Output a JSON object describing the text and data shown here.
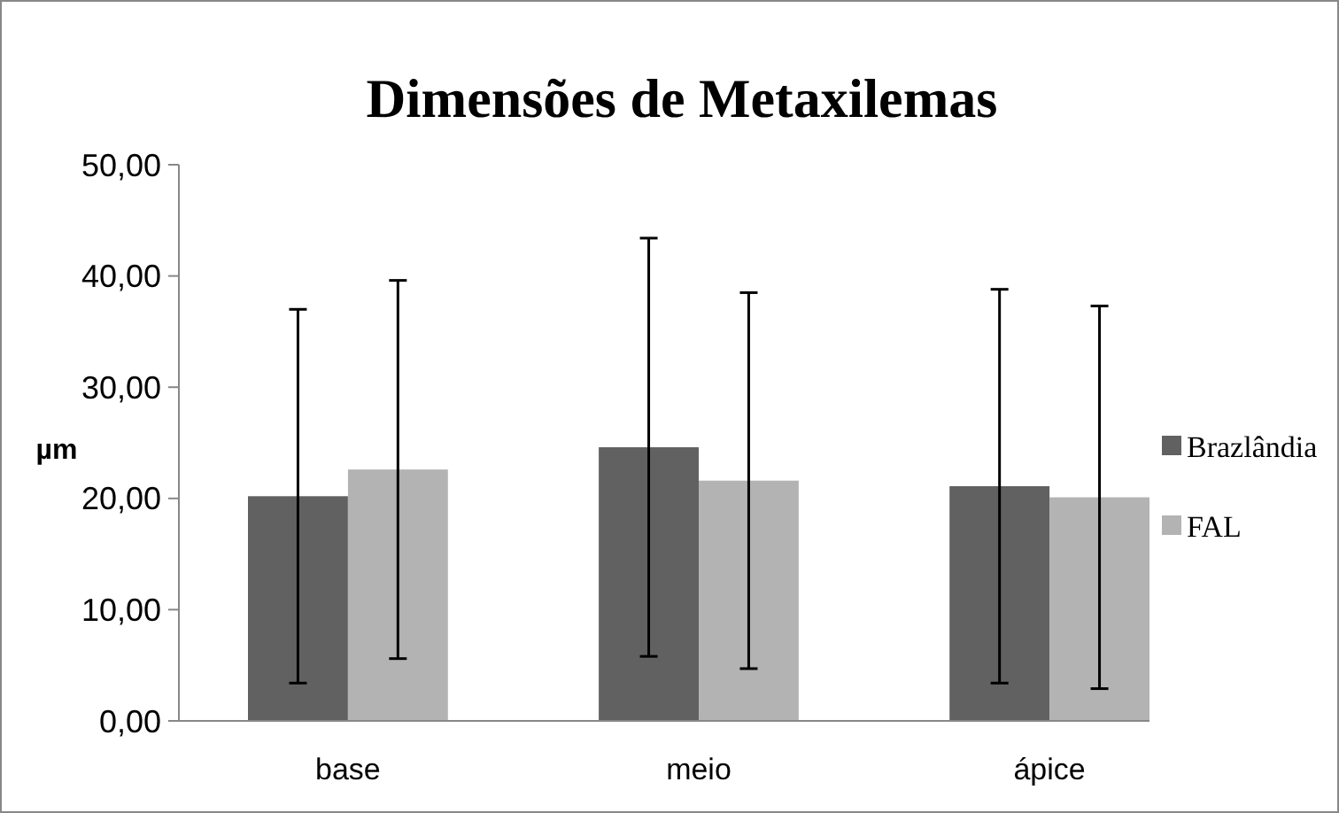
{
  "chart_data": {
    "type": "bar",
    "title": "Dimensões de Metaxilemas",
    "ylabel": "µm",
    "categories": [
      "base",
      "meio",
      "ápice"
    ],
    "series": [
      {
        "name": "Brazlândia",
        "color": "#616161",
        "values": [
          20.2,
          24.6,
          21.1
        ],
        "errors": [
          16.8,
          18.8,
          17.7
        ]
      },
      {
        "name": "FAL",
        "color": "#b3b3b3",
        "values": [
          22.6,
          21.6,
          20.1
        ],
        "errors": [
          17.0,
          16.9,
          17.2
        ]
      }
    ],
    "ylim": [
      0,
      50
    ],
    "yticks": [
      {
        "value": 0,
        "label": "0,00"
      },
      {
        "value": 10,
        "label": "10,00"
      },
      {
        "value": 20,
        "label": "20,00"
      },
      {
        "value": 30,
        "label": "30,00"
      },
      {
        "value": 40,
        "label": "40,00"
      },
      {
        "value": 50,
        "label": "50,00"
      }
    ],
    "legend": "right"
  }
}
